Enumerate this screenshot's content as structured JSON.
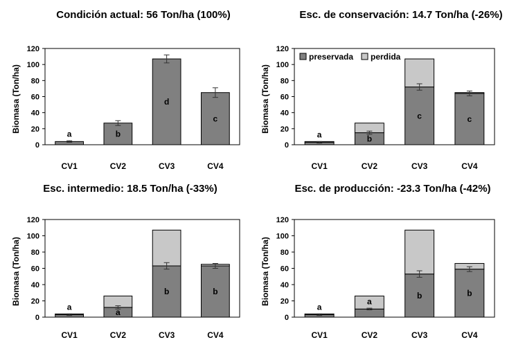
{
  "colors": {
    "preserved": "#808080",
    "lost": "#c8c8c8",
    "frame": "#000000"
  },
  "chart_data": [
    {
      "type": "bar",
      "title": "Condición actual: 56 Ton/ha (100%)",
      "ylabel": "Biomasa (Ton/ha)",
      "ylim": [
        0,
        120
      ],
      "yticks": [
        0,
        20,
        40,
        60,
        80,
        100,
        120
      ],
      "categories": [
        "CV1",
        "CV2",
        "CV3",
        "CV4"
      ],
      "series": [
        {
          "values": [
            4,
            27,
            107,
            65
          ],
          "errors": [
            1,
            3,
            5,
            6
          ]
        }
      ],
      "letters": [
        "a",
        "b",
        "d",
        "c"
      ],
      "legend": []
    },
    {
      "type": "bar",
      "stacked": true,
      "title": "Esc. de conservación: 14.7 Ton/ha (-26%)",
      "ylabel": "Biomasa (Ton/ha)",
      "ylim": [
        0,
        120
      ],
      "yticks": [
        0,
        20,
        40,
        60,
        80,
        100,
        120
      ],
      "categories": [
        "CV1",
        "CV2",
        "CV3",
        "CV4"
      ],
      "series": [
        {
          "name": "preservada",
          "values": [
            3,
            15,
            72,
            64
          ],
          "errors": [
            1,
            2,
            4,
            3
          ]
        },
        {
          "name": "perdida",
          "values": [
            1,
            12,
            35,
            1
          ]
        }
      ],
      "letters": [
        "a",
        "b",
        "c",
        "c"
      ],
      "legend": [
        "preservada",
        "perdida"
      ]
    },
    {
      "type": "bar",
      "stacked": true,
      "title": "Esc. intermedio: 18.5 Ton/ha (-33%)",
      "ylabel": "Biomasa (Ton/ha)",
      "ylim": [
        0,
        120
      ],
      "yticks": [
        0,
        20,
        40,
        60,
        80,
        100,
        120
      ],
      "categories": [
        "CV1",
        "CV2",
        "CV3",
        "CV4"
      ],
      "series": [
        {
          "values": [
            3,
            12,
            63,
            63
          ],
          "errors": [
            1,
            2,
            4,
            3
          ]
        },
        {
          "values": [
            1,
            14,
            44,
            2
          ]
        }
      ],
      "letters": [
        "a",
        "a",
        "b",
        "b"
      ],
      "legend": []
    },
    {
      "type": "bar",
      "stacked": true,
      "title": "Esc. de producción: -23.3 Ton/ha (-42%)",
      "ylabel": "Biomasa (Ton/ha)",
      "ylim": [
        0,
        120
      ],
      "yticks": [
        0,
        20,
        40,
        60,
        80,
        100,
        120
      ],
      "categories": [
        "CV1",
        "CV2",
        "CV3",
        "CV4"
      ],
      "series": [
        {
          "values": [
            3,
            10,
            53,
            59
          ],
          "errors": [
            1,
            1,
            4,
            3
          ]
        },
        {
          "values": [
            1,
            16,
            54,
            7
          ]
        }
      ],
      "letters": [
        "a",
        "a",
        "b",
        "b"
      ],
      "legend": []
    }
  ]
}
